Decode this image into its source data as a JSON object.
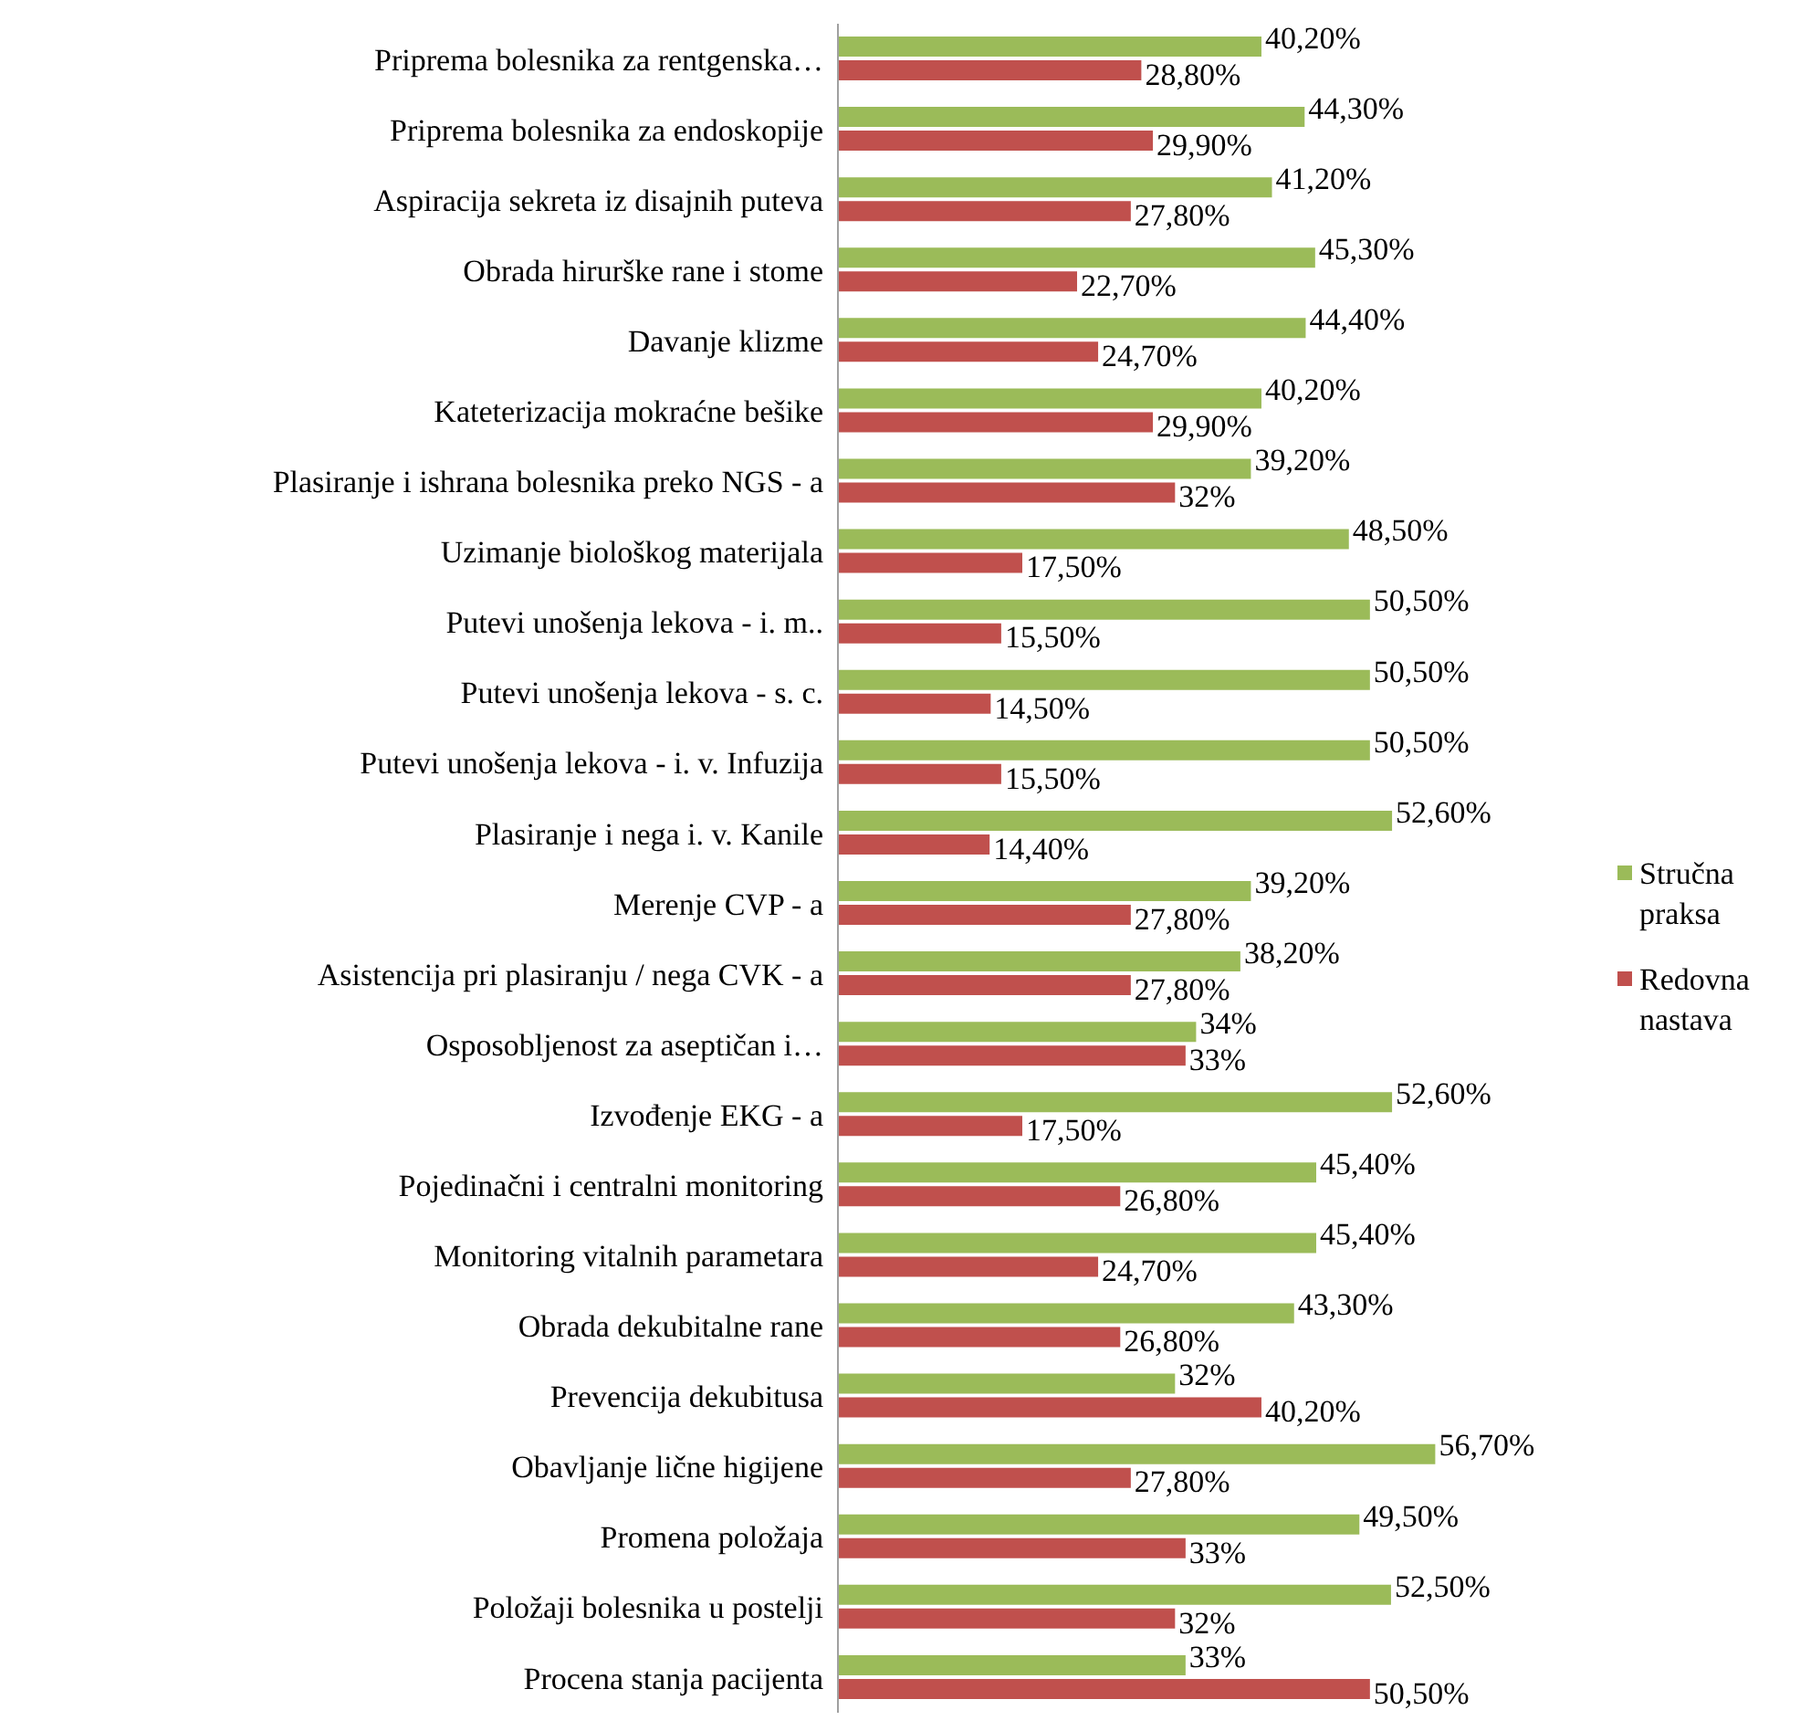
{
  "chart_data": {
    "type": "bar",
    "orientation": "horizontal",
    "legend": "right",
    "categories": [
      "Priprema bolesnika za rentgenska…",
      "Priprema bolesnika za endoskopije",
      "Aspiracija sekreta iz disajnih puteva",
      "Obrada hirurške rane i stome",
      "Davanje klizme",
      "Kateterizacija mokraćne bešike",
      "Plasiranje i ishrana bolesnika preko NGS - a",
      "Uzimanje biološkog materijala",
      "Putevi unošenja lekova - i. m..",
      "Putevi unošenja lekova - s. c.",
      "Putevi unošenja lekova - i. v. Infuzija",
      "Plasiranje i nega i. v. Kanile",
      "Merenje CVP - a",
      "Asistencija pri plasiranju / nega CVK - a",
      "Osposobljenost za aseptičan i…",
      "Izvođenje EKG - a",
      "Pojedinačni i centralni monitoring",
      "Monitoring vitalnih parametara",
      "Obrada dekubitalne rane",
      "Prevencija dekubitusa",
      "Obavljanje lične higijene",
      "Promena položaja",
      "Položaji bolesnika u postelji",
      "Procena stanja pacijenta"
    ],
    "series": [
      {
        "name": "Stručna praksa",
        "color": "#9bbb59",
        "values": [
          40.2,
          44.3,
          41.2,
          45.3,
          44.4,
          40.2,
          39.2,
          48.5,
          50.5,
          50.5,
          50.5,
          52.6,
          39.2,
          38.2,
          34,
          52.6,
          45.4,
          45.4,
          43.3,
          32,
          56.7,
          49.5,
          52.5,
          33
        ],
        "value_labels": [
          "40,20%",
          "44,30%",
          "41,20%",
          "45,30%",
          "44,40%",
          "40,20%",
          "39,20%",
          "48,50%",
          "50,50%",
          "50,50%",
          "50,50%",
          "52,60%",
          "39,20%",
          "38,20%",
          "34%",
          "52,60%",
          "45,40%",
          "45,40%",
          "43,30%",
          "32%",
          "56,70%",
          "49,50%",
          "52,50%",
          "33%"
        ]
      },
      {
        "name": "Redovna nastava",
        "color": "#c0504d",
        "values": [
          28.8,
          29.9,
          27.8,
          22.7,
          24.7,
          29.9,
          32,
          17.5,
          15.5,
          14.5,
          15.5,
          14.4,
          27.8,
          27.8,
          33,
          17.5,
          26.8,
          24.7,
          26.8,
          40.2,
          27.8,
          33,
          32,
          50.5
        ],
        "value_labels": [
          "28,80%",
          "29,90%",
          "27,80%",
          "22,70%",
          "24,70%",
          "29,90%",
          "32%",
          "17,50%",
          "15,50%",
          "14,50%",
          "15,50%",
          "14,40%",
          "27,80%",
          "27,80%",
          "33%",
          "17,50%",
          "26,80%",
          "24,70%",
          "26,80%",
          "40,20%",
          "27,80%",
          "33%",
          "32%",
          "50,50%"
        ]
      }
    ]
  }
}
